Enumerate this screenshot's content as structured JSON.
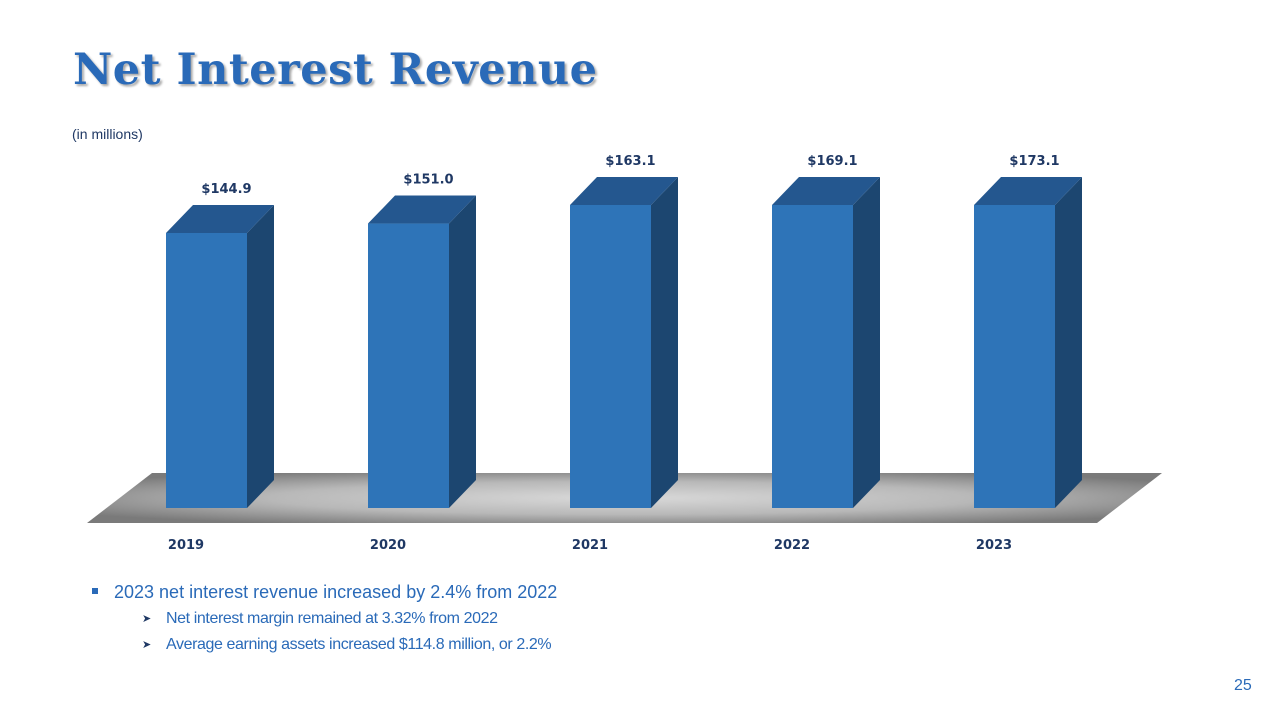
{
  "slide": {
    "title": "Net Interest Revenue",
    "subtitle": "(in millions)",
    "page_number": "25"
  },
  "chart_data": {
    "type": "bar",
    "categories": [
      "2019",
      "2020",
      "2021",
      "2022",
      "2023"
    ],
    "values": [
      144.9,
      151.0,
      163.1,
      169.1,
      173.1
    ],
    "data_labels": [
      "$144.9",
      "$151.0",
      "$163.1",
      "$169.1",
      "$173.1"
    ],
    "title": "",
    "xlabel": "",
    "ylabel": "",
    "grid": false,
    "style": "3d-column",
    "colors": {
      "bar_front": "#2e74b8",
      "bar_side": "#1c4670",
      "bar_top": "#24578f",
      "label": "#1f3864"
    }
  },
  "bullets": [
    {
      "text": "2023 net interest revenue increased by 2.4% from 2022",
      "sub": [
        "Net interest margin remained at 3.32% from 2022",
        "Average earning assets increased $114.8 million, or 2.2%"
      ]
    }
  ],
  "colors": {
    "accent": "#2a6ab8",
    "dark_blue": "#1f3864"
  }
}
